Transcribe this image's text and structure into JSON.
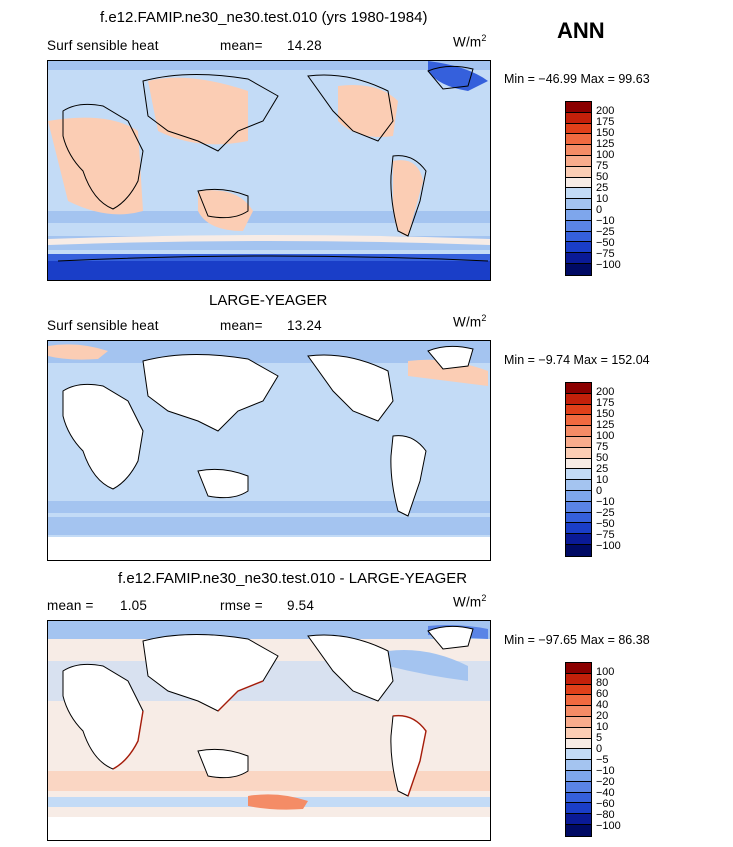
{
  "season": "ANN",
  "panel1": {
    "title": "f.e12.FAMIP.ne30_ne30.test.010 (yrs 1980-1984)",
    "variable": "Surf sensible heat",
    "stat_label": "mean=",
    "stat_value": "14.28",
    "units_main": "W/m",
    "units_exp": "2",
    "min_label": "Min =",
    "min_value": "−46.99",
    "max_label": "Max =",
    "max_value": "99.63",
    "colorbar_labels": [
      "200",
      "175",
      "150",
      "125",
      "100",
      "75",
      "50",
      "25",
      "10",
      "0",
      "−10",
      "−25",
      "−50",
      "−75",
      "−100"
    ]
  },
  "panel2": {
    "title": "LARGE-YEAGER",
    "variable": "Surf sensible heat",
    "stat_label": "mean=",
    "stat_value": "13.24",
    "units_main": "W/m",
    "units_exp": "2",
    "min_label": "Min =",
    "min_value": "−9.74",
    "max_label": "Max =",
    "max_value": "152.04",
    "colorbar_labels": [
      "200",
      "175",
      "150",
      "125",
      "100",
      "75",
      "50",
      "25",
      "10",
      "0",
      "−10",
      "−25",
      "−50",
      "−75",
      "−100"
    ]
  },
  "panel3": {
    "title": "f.e12.FAMIP.ne30_ne30.test.010 - LARGE-YEAGER",
    "mean_label": "mean =",
    "mean_value": "1.05",
    "rmse_label": "rmse =",
    "rmse_value": "9.54",
    "units_main": "W/m",
    "units_exp": "2",
    "min_label": "Min =",
    "min_value": "−97.65",
    "max_label": "Max =",
    "max_value": "86.38",
    "colorbar_labels": [
      "100",
      "80",
      "60",
      "40",
      "20",
      "10",
      "5",
      "0",
      "−5",
      "−10",
      "−20",
      "−40",
      "−60",
      "−80",
      "−100"
    ]
  },
  "colors": {
    "scale_full": [
      "#8b0000",
      "#c4200a",
      "#e0401a",
      "#f06a40",
      "#f48c66",
      "#f8ac8c",
      "#fbcdb4",
      "#f7ece6",
      "#c3dbf6",
      "#a4c4f0",
      "#7ea6ec",
      "#5a84e6",
      "#3560dc",
      "#1a3ec8",
      "#0a1a96",
      "#000a64"
    ],
    "land": "#ffffff",
    "warm": "#fbcdb4",
    "cool": "#a4c4f0",
    "cold": "#3560dc"
  }
}
